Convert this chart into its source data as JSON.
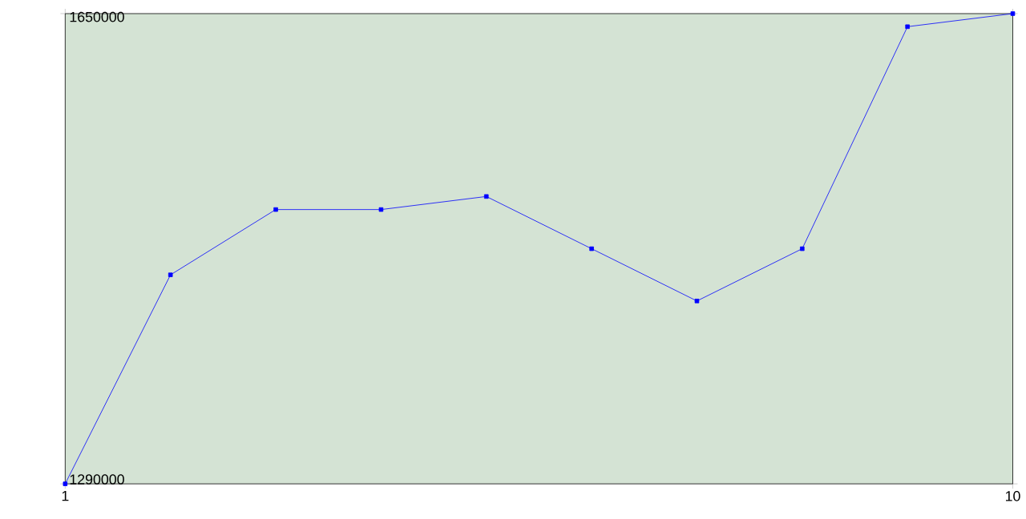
{
  "chart_data": {
    "type": "line",
    "x": [
      1,
      2,
      3,
      4,
      5,
      6,
      7,
      8,
      9,
      10
    ],
    "series": [
      {
        "color": "#0000ff",
        "values": [
          1290000,
          1450000,
          1500000,
          1500000,
          1510000,
          1470000,
          1430000,
          1470000,
          1640000,
          1650000
        ]
      }
    ],
    "xlim": [
      1,
      10
    ],
    "xticks": [
      1,
      10
    ],
    "ylim": [
      1290000,
      1650000
    ],
    "yticks": [
      1290000,
      1650000
    ],
    "marker": "square",
    "line_style": "solid",
    "grid": false
  }
}
